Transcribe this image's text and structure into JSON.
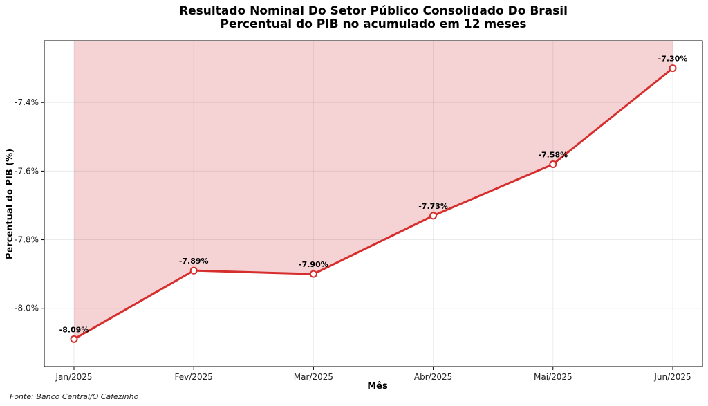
{
  "chart_data": {
    "type": "line",
    "title": "Resultado Nominal Do Setor Público Consolidado Do Brasil",
    "subtitle": "Percentual do PIB no acumulado em 12 meses",
    "xlabel": "Mês",
    "ylabel": "Percentual do PIB (%)",
    "categories": [
      "Jan/2025",
      "Fev/2025",
      "Mar/2025",
      "Abr/2025",
      "Mai/2025",
      "Jun/2025"
    ],
    "values": [
      -8.09,
      -7.89,
      -7.9,
      -7.73,
      -7.58,
      -7.3
    ],
    "data_labels": [
      "-8.09%",
      "-7.89%",
      "-7.90%",
      "-7.73%",
      "-7.58%",
      "-7.30%"
    ],
    "ylim": [
      -8.17,
      -7.22
    ],
    "yticks": [
      -8.0,
      -7.8,
      -7.6,
      -7.4
    ],
    "ytick_labels": [
      "-8.0%",
      "-7.8%",
      "-7.6%",
      "-7.4%"
    ],
    "grid": true,
    "fill": "above",
    "colors": {
      "line": "#d62d2d",
      "fill": "#f5d3d5",
      "marker_fill": "#ffffff"
    }
  },
  "source": "Fonte: Banco Central/O Cafezinho"
}
